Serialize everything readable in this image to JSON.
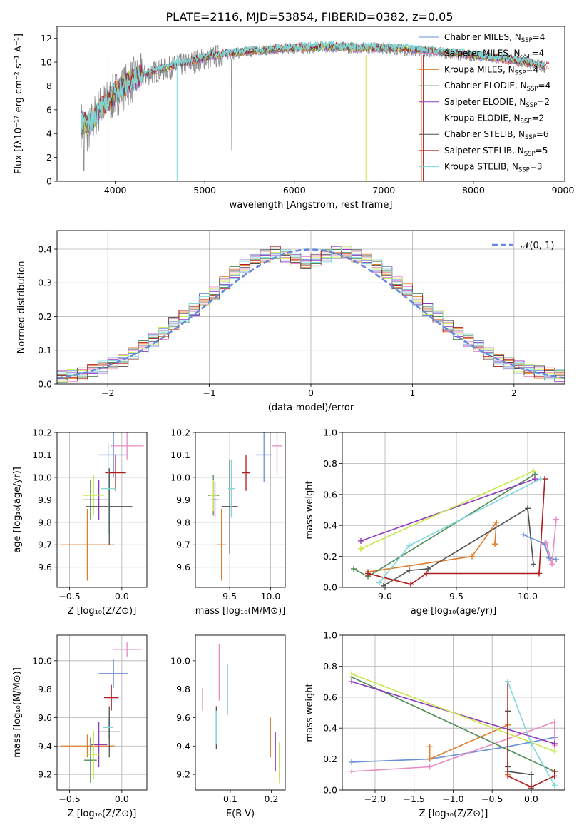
{
  "figure": {
    "title": "PLATE=2116, MJD=53854, FIBERID=0382, z=0.05"
  },
  "colors": {
    "chabrier_miles": "#6b8fd8",
    "salpeter_miles": "#e88bc4",
    "kroupa_miles": "#e07b2a",
    "chabrier_elodie": "#4f8a55",
    "salpeter_elodie": "#8e3ab8",
    "kroupa_elodie": "#c8e84a",
    "chabrier_stelib": "#505050",
    "salpeter_stelib": "#b01c1c",
    "kroupa_stelib": "#7fd8d8",
    "gaussian": "#6688dd",
    "grid": "#b0b0b0"
  },
  "chart_data": [
    {
      "id": "spectrum",
      "type": "line",
      "xlabel": "wavelength [Angstrom, rest frame]",
      "ylabel": "Flux [fλ10⁻¹⁷ erg cm⁻² s⁻¹ A⁻¹]",
      "xlim": [
        3350,
        9020
      ],
      "ylim": [
        0,
        13
      ],
      "xticks": [
        "4000",
        "5000",
        "6000",
        "7000",
        "8000",
        "9000"
      ],
      "yticks": [
        "0",
        "2",
        "4",
        "6",
        "8",
        "10",
        "12"
      ],
      "grid": false,
      "legend_position": "right",
      "data_x": [
        3620,
        3700,
        3800,
        3900,
        4000,
        4100,
        4200,
        4400,
        4600,
        4800,
        5000,
        5200,
        5500,
        5800,
        6100,
        6400,
        6700,
        7000,
        7300,
        7600,
        7900,
        8200,
        8500,
        8800
      ],
      "data_y": [
        4.8,
        4.2,
        5.9,
        6.5,
        7.3,
        7.9,
        8.5,
        9.1,
        9.5,
        9.9,
        10.3,
        10.6,
        10.9,
        11.1,
        11.2,
        11.3,
        11.2,
        11.2,
        11.0,
        10.8,
        10.6,
        10.4,
        10.1,
        9.6
      ],
      "model_y": [
        5.0,
        4.6,
        5.8,
        6.6,
        7.4,
        8.0,
        8.6,
        9.2,
        9.6,
        10.0,
        10.4,
        10.7,
        10.9,
        11.1,
        11.2,
        11.3,
        11.2,
        11.2,
        11.1,
        10.9,
        10.7,
        10.4,
        10.1,
        9.7
      ],
      "series": [
        {
          "name": "Chabrier MILES, N",
          "sub": "SSP",
          "suffix": "=4"
        },
        {
          "name": "Salpeter MILES, N",
          "sub": "SSP",
          "suffix": "=4"
        },
        {
          "name": "Kroupa MILES, N",
          "sub": "SSP",
          "suffix": "=4"
        },
        {
          "name": "Chabrier ELODIE, N",
          "sub": "SSP",
          "suffix": "=4"
        },
        {
          "name": "Salpeter ELODIE, N",
          "sub": "SSP",
          "suffix": "=2"
        },
        {
          "name": "Kroupa ELODIE, N",
          "sub": "SSP",
          "suffix": "=2"
        },
        {
          "name": "Chabrier STELIB, N",
          "sub": "SSP",
          "suffix": "=6"
        },
        {
          "name": "Salpeter STELIB, N",
          "sub": "SSP",
          "suffix": "=5"
        },
        {
          "name": "Kroupa STELIB, N",
          "sub": "SSP",
          "suffix": "=3"
        }
      ]
    },
    {
      "id": "residuals",
      "type": "area",
      "xlabel": "(data-model)/error",
      "ylabel": "Normed distribution",
      "xlim": [
        -2.5,
        2.5
      ],
      "ylim": [
        0,
        0.455
      ],
      "xticks": [
        -2,
        -1,
        0,
        1,
        2
      ],
      "xtick_labels": [
        "−2",
        "−1",
        "0",
        "1",
        "2"
      ],
      "yticks": [
        0,
        0.1,
        0.2,
        0.3,
        0.4
      ],
      "ytick_labels": [
        "0.0",
        "0.1",
        "0.2",
        "0.3",
        "0.4"
      ],
      "grid": true,
      "legend": {
        "label": "𝒩(0, 1)",
        "position": "top-right"
      },
      "bin_width": 0.1,
      "hist_x": [
        -2.45,
        -2.35,
        -2.25,
        -2.15,
        -2.05,
        -1.95,
        -1.85,
        -1.75,
        -1.65,
        -1.55,
        -1.45,
        -1.35,
        -1.25,
        -1.15,
        -1.05,
        -0.95,
        -0.85,
        -0.75,
        -0.65,
        -0.55,
        -0.45,
        -0.35,
        -0.25,
        -0.15,
        -0.05,
        0.05,
        0.15,
        0.25,
        0.35,
        0.45,
        0.55,
        0.65,
        0.75,
        0.85,
        0.95,
        1.05,
        1.15,
        1.25,
        1.35,
        1.45,
        1.55,
        1.65,
        1.75,
        1.85,
        1.95,
        2.05,
        2.15,
        2.25,
        2.35,
        2.45
      ],
      "hist_base": [
        0.02,
        0.025,
        0.03,
        0.04,
        0.05,
        0.06,
        0.07,
        0.09,
        0.11,
        0.13,
        0.15,
        0.18,
        0.2,
        0.22,
        0.25,
        0.27,
        0.3,
        0.33,
        0.35,
        0.37,
        0.38,
        0.39,
        0.38,
        0.37,
        0.36,
        0.37,
        0.38,
        0.39,
        0.39,
        0.38,
        0.37,
        0.35,
        0.33,
        0.3,
        0.28,
        0.25,
        0.22,
        0.2,
        0.17,
        0.15,
        0.13,
        0.11,
        0.09,
        0.07,
        0.06,
        0.05,
        0.04,
        0.035,
        0.03,
        0.025
      ],
      "gaussian": {
        "mu": 0,
        "sigma": 1
      }
    },
    {
      "id": "age_vs_Z",
      "type": "scatter",
      "xlabel": "Z [log₁₀(Z/Z⊙)]",
      "ylabel": "age  [log₁₀(age/yr)]",
      "xlim": [
        -0.62,
        0.24
      ],
      "ylim": [
        9.51,
        10.2
      ],
      "xticks": [
        -0.5,
        0.0
      ],
      "xtick_labels": [
        "−0.5",
        "0.0"
      ],
      "yticks": [
        9.6,
        9.7,
        9.8,
        9.9,
        10.0,
        10.1,
        10.2
      ],
      "ytick_labels": [
        "9.6",
        "9.7",
        "9.8",
        "9.9",
        "10.0",
        "10.1",
        "10.2"
      ],
      "grid": true,
      "points": [
        {
          "s": "chabrier_miles",
          "x": -0.08,
          "y": 10.1,
          "xerr": 0.14,
          "yerr": 0.1
        },
        {
          "s": "salpeter_miles",
          "x": 0.05,
          "y": 10.14,
          "xerr": 0.16,
          "yerr": 0.06
        },
        {
          "s": "kroupa_miles",
          "x": -0.33,
          "y": 9.7,
          "xerr": 0.26,
          "yerr": 0.16
        },
        {
          "s": "chabrier_elodie",
          "x": -0.3,
          "y": 9.9,
          "xerr": 0.08,
          "yerr": 0.09
        },
        {
          "s": "salpeter_elodie",
          "x": -0.22,
          "y": 9.9,
          "xerr": 0.09,
          "yerr": 0.09
        },
        {
          "s": "kroupa_elodie",
          "x": -0.27,
          "y": 9.92,
          "xerr": 0.1,
          "yerr": 0.09
        },
        {
          "s": "chabrier_stelib",
          "x": -0.12,
          "y": 9.87,
          "xerr": 0.22,
          "yerr": 0.17
        },
        {
          "s": "salpeter_stelib",
          "x": -0.06,
          "y": 10.02,
          "xerr": 0.1,
          "yerr": 0.08
        },
        {
          "s": "kroupa_stelib",
          "x": -0.13,
          "y": 9.95,
          "xerr": 0.07,
          "yerr": 0.2
        }
      ]
    },
    {
      "id": "age_vs_mass",
      "type": "scatter",
      "xlabel": "mass [log₁₀(M/M⊙)]",
      "ylabel": "",
      "xlim": [
        9.08,
        10.18
      ],
      "ylim": [
        9.51,
        10.2
      ],
      "xticks": [
        9.5,
        10.0
      ],
      "xtick_labels": [
        "9.5",
        "10.0"
      ],
      "yticks": [
        9.6,
        9.7,
        9.8,
        9.9,
        10.0,
        10.1,
        10.2
      ],
      "ytick_labels": [
        "9.6",
        "9.7",
        "9.8",
        "9.9",
        "10.0",
        "10.1",
        "10.2"
      ],
      "grid": true,
      "points": [
        {
          "s": "chabrier_miles",
          "x": 9.92,
          "y": 10.1,
          "xerr": 0.1,
          "yerr": 0.12
        },
        {
          "s": "salpeter_miles",
          "x": 10.08,
          "y": 10.14,
          "xerr": 0.06,
          "yerr": 0.13
        },
        {
          "s": "kroupa_miles",
          "x": 9.4,
          "y": 9.7,
          "xerr": 0.05,
          "yerr": 0.16
        },
        {
          "s": "chabrier_elodie",
          "x": 9.3,
          "y": 9.92,
          "xerr": 0.07,
          "yerr": 0.09
        },
        {
          "s": "salpeter_elodie",
          "x": 9.32,
          "y": 9.9,
          "xerr": 0.05,
          "yerr": 0.08
        },
        {
          "s": "kroupa_elodie",
          "x": 9.3,
          "y": 9.92,
          "xerr": 0.05,
          "yerr": 0.07
        },
        {
          "s": "chabrier_stelib",
          "x": 9.5,
          "y": 9.87,
          "xerr": 0.1,
          "yerr": 0.21
        },
        {
          "s": "salpeter_stelib",
          "x": 9.7,
          "y": 10.02,
          "xerr": 0.05,
          "yerr": 0.08
        },
        {
          "s": "kroupa_stelib",
          "x": 9.52,
          "y": 9.95,
          "xerr": 0.04,
          "yerr": 0.13
        }
      ]
    },
    {
      "id": "weight_vs_age",
      "type": "line",
      "xlabel": "age  [log₁₀(age/yr)]",
      "ylabel": "mass weight",
      "xlim": [
        8.7,
        10.26
      ],
      "ylim": [
        0,
        1
      ],
      "xticks": [
        9.0,
        9.5,
        10.0
      ],
      "xtick_labels": [
        "9.0",
        "9.5",
        "10.0"
      ],
      "yticks": [
        0,
        0.2,
        0.4,
        0.6,
        0.8,
        1.0
      ],
      "ytick_labels": [
        "0.0",
        "0.2",
        "0.4",
        "0.6",
        "0.8",
        "1.0"
      ],
      "grid": true,
      "series": [
        {
          "s": "chabrier_miles",
          "x": [
            9.97,
            10.12,
            10.15,
            10.2
          ],
          "y": [
            0.34,
            0.28,
            0.19,
            0.18
          ]
        },
        {
          "s": "salpeter_miles",
          "x": [
            10.13,
            10.17,
            10.2
          ],
          "y": [
            0.29,
            0.15,
            0.44
          ]
        },
        {
          "s": "kroupa_miles",
          "x": [
            8.88,
            9.61,
            9.78,
            9.77
          ],
          "y": [
            0.1,
            0.2,
            0.42,
            0.28
          ]
        },
        {
          "s": "chabrier_elodie",
          "x": [
            8.78,
            8.88,
            10.05
          ],
          "y": [
            0.12,
            0.07,
            0.73
          ]
        },
        {
          "s": "salpeter_elodie",
          "x": [
            8.83,
            10.05
          ],
          "y": [
            0.3,
            0.7
          ]
        },
        {
          "s": "kroupa_elodie",
          "x": [
            8.83,
            10.04
          ],
          "y": [
            0.25,
            0.75
          ]
        },
        {
          "s": "chabrier_stelib",
          "x": [
            8.99,
            9.17,
            9.3,
            10.0,
            10.04
          ],
          "y": [
            0.01,
            0.11,
            0.12,
            0.51,
            0.15
          ]
        },
        {
          "s": "salpeter_stelib",
          "x": [
            8.88,
            9.18,
            9.29,
            10.08,
            10.12
          ],
          "y": [
            0.09,
            0.02,
            0.09,
            0.09,
            0.7
          ]
        },
        {
          "s": "kroupa_stelib",
          "x": [
            8.96,
            9.17,
            10.09
          ],
          "y": [
            0.03,
            0.27,
            0.7
          ]
        }
      ]
    },
    {
      "id": "mass_vs_Z",
      "type": "scatter",
      "xlabel": "Z [log₁₀(Z/Z⊙)]",
      "ylabel": "mass [log₁₀(M/M⊙)]",
      "xlim": [
        -0.62,
        0.24
      ],
      "ylim": [
        9.09,
        10.18
      ],
      "xticks": [
        -0.5,
        0.0
      ],
      "xtick_labels": [
        "−0.5",
        "0.0"
      ],
      "yticks": [
        9.2,
        9.4,
        9.6,
        9.8,
        10.0
      ],
      "ytick_labels": [
        "9.2",
        "9.4",
        "9.6",
        "9.8",
        "10.0"
      ],
      "grid": true,
      "points": [
        {
          "s": "chabrier_miles",
          "x": -0.08,
          "y": 9.91,
          "xerr": 0.14,
          "yerr": 0.1
        },
        {
          "s": "salpeter_miles",
          "x": 0.05,
          "y": 10.08,
          "xerr": 0.14,
          "yerr": 0.05
        },
        {
          "s": "kroupa_miles",
          "x": -0.33,
          "y": 9.4,
          "xerr": 0.26,
          "yerr": 0.08
        },
        {
          "s": "chabrier_elodie",
          "x": -0.3,
          "y": 9.3,
          "xerr": 0.06,
          "yerr": 0.16
        },
        {
          "s": "salpeter_elodie",
          "x": -0.22,
          "y": 9.41,
          "xerr": 0.08,
          "yerr": 0.16
        },
        {
          "s": "kroupa_elodie",
          "x": -0.27,
          "y": 9.34,
          "xerr": 0.06,
          "yerr": 0.17
        },
        {
          "s": "chabrier_stelib",
          "x": -0.12,
          "y": 9.5,
          "xerr": 0.1,
          "yerr": 0.18
        },
        {
          "s": "salpeter_stelib",
          "x": -0.1,
          "y": 9.74,
          "xerr": 0.07,
          "yerr": 0.09
        },
        {
          "s": "kroupa_stelib",
          "x": -0.13,
          "y": 9.53,
          "xerr": 0.05,
          "yerr": 0.08
        }
      ]
    },
    {
      "id": "mass_vs_ebv",
      "type": "scatter",
      "xlabel": "E(B-V)",
      "ylabel": "",
      "xlim": [
        0.015,
        0.234
      ],
      "ylim": [
        9.09,
        10.18
      ],
      "xticks": [
        0.1,
        0.2
      ],
      "xtick_labels": [
        "0.1",
        "0.2"
      ],
      "yticks": [
        9.2,
        9.4,
        9.6,
        9.8,
        10.0
      ],
      "ytick_labels": [
        "9.2",
        "9.4",
        "9.6",
        "9.8",
        "10.0"
      ],
      "grid": false,
      "points": [
        {
          "s": "chabrier_miles",
          "x": 0.093,
          "y": 9.8,
          "xerr": 0,
          "yerr": 0.18
        },
        {
          "s": "salpeter_miles",
          "x": 0.073,
          "y": 9.92,
          "xerr": 0,
          "yerr": 0.2
        },
        {
          "s": "kroupa_miles",
          "x": 0.198,
          "y": 9.46,
          "xerr": 0,
          "yerr": 0.14
        },
        {
          "s": "chabrier_elodie",
          "x": 0.22,
          "y": 9.29,
          "xerr": 0,
          "yerr": 0.13
        },
        {
          "s": "salpeter_elodie",
          "x": 0.21,
          "y": 9.36,
          "xerr": 0,
          "yerr": 0.14
        },
        {
          "s": "kroupa_elodie",
          "x": 0.22,
          "y": 9.28,
          "xerr": 0,
          "yerr": 0.15
        },
        {
          "s": "chabrier_stelib",
          "x": 0.066,
          "y": 9.53,
          "xerr": 0,
          "yerr": 0.15
        },
        {
          "s": "salpeter_stelib",
          "x": 0.033,
          "y": 9.73,
          "xerr": 0,
          "yerr": 0.08
        },
        {
          "s": "kroupa_stelib",
          "x": 0.066,
          "y": 9.53,
          "xerr": 0,
          "yerr": 0.12
        }
      ]
    },
    {
      "id": "weight_vs_Z",
      "type": "line",
      "xlabel": "Z [log₁₀(Z/Z⊙)]",
      "ylabel": "mass weight",
      "xlim": [
        -2.42,
        0.43
      ],
      "ylim": [
        0,
        1
      ],
      "xticks": [
        -2.0,
        -1.5,
        -1.0,
        -0.5,
        0.0
      ],
      "xtick_labels": [
        "−2.0",
        "−1.5",
        "−1.0",
        "−0.5",
        "0.0"
      ],
      "yticks": [
        0,
        0.2,
        0.4,
        0.6,
        0.8,
        1.0
      ],
      "ytick_labels": [
        "0.0",
        "0.2",
        "0.4",
        "0.6",
        "0.8",
        "1.0"
      ],
      "grid": true,
      "series": [
        {
          "s": "chabrier_miles",
          "x": [
            -2.3,
            -1.3,
            -0.3,
            0.3
          ],
          "y": [
            0.18,
            0.2,
            0.28,
            0.34
          ]
        },
        {
          "s": "salpeter_miles",
          "x": [
            -2.3,
            -1.3,
            0.3,
            0.3
          ],
          "y": [
            0.12,
            0.15,
            0.44,
            0.29
          ]
        },
        {
          "s": "kroupa_miles",
          "x": [
            -1.3,
            -1.3,
            -0.3,
            -0.3
          ],
          "y": [
            0.28,
            0.2,
            0.42,
            0.1
          ]
        },
        {
          "s": "chabrier_elodie",
          "x": [
            -2.3,
            0.3
          ],
          "y": [
            0.73,
            0.12
          ]
        },
        {
          "s": "salpeter_elodie",
          "x": [
            -2.3,
            0.3
          ],
          "y": [
            0.7,
            0.3
          ]
        },
        {
          "s": "kroupa_elodie",
          "x": [
            -2.3,
            0.3
          ],
          "y": [
            0.75,
            0.25
          ]
        },
        {
          "s": "chabrier_stelib",
          "x": [
            -0.3,
            -0.3,
            -0.3,
            0.0,
            0.0
          ],
          "y": [
            0.51,
            0.15,
            0.12,
            0.1,
            0.01
          ]
        },
        {
          "s": "salpeter_stelib",
          "x": [
            -0.3,
            -0.3,
            0.0,
            0.3,
            0.3
          ],
          "y": [
            0.7,
            0.09,
            0.02,
            0.09,
            0.12
          ]
        },
        {
          "s": "kroupa_stelib",
          "x": [
            -0.3,
            0.0,
            0.3
          ],
          "y": [
            0.7,
            0.3,
            0.03
          ]
        }
      ]
    }
  ]
}
